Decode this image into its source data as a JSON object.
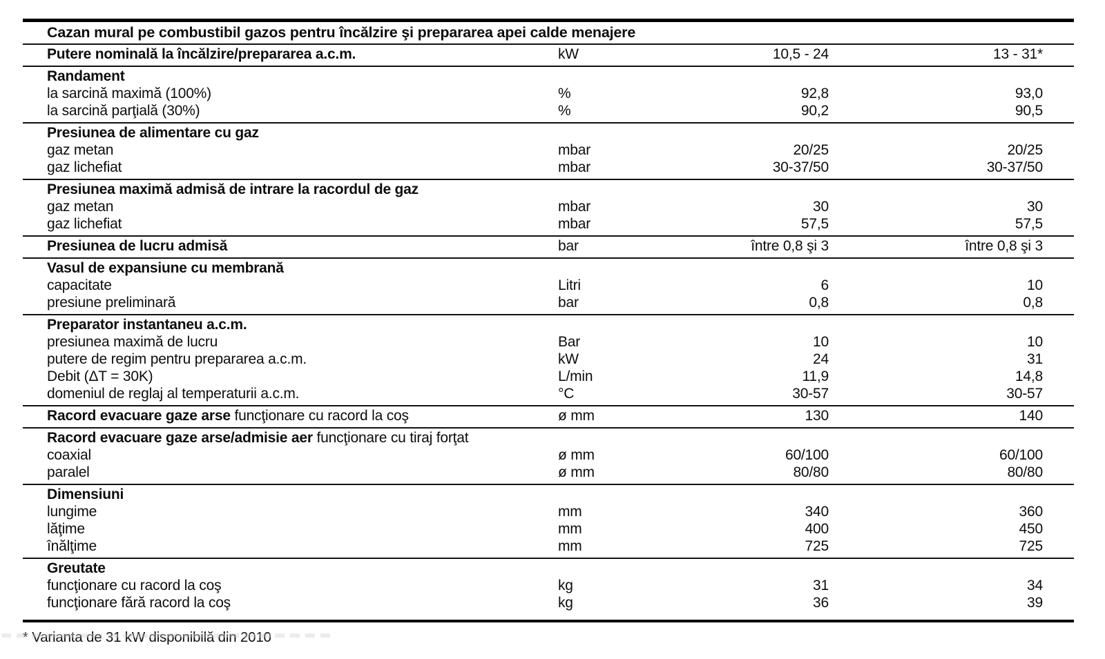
{
  "page": {
    "title_row": "Cazan mural pe combustibil gazos pentru încălzire şi prepararea apei calde menajere",
    "footnote": "* Varianta de 31 kW disponibilă din 2010"
  },
  "table": {
    "power": {
      "label": "Putere nominală la încălzire/prepararea a.c.m.",
      "unit": "kW",
      "v1": "10,5 - 24",
      "v2": "13 - 31*"
    },
    "sections": [
      {
        "header": "Randament",
        "rows": [
          {
            "label": "la sarcină maximă (100%)",
            "unit": "%",
            "v1": "92,8",
            "v2": "93,0"
          },
          {
            "label": "la sarcină parţială (30%)",
            "unit": "%",
            "v1": "90,2",
            "v2": "90,5"
          }
        ]
      },
      {
        "header": "Presiunea de alimentare cu gaz",
        "rows": [
          {
            "label": "gaz metan",
            "unit": "mbar",
            "v1": "20/25",
            "v2": "20/25"
          },
          {
            "label": "gaz lichefiat",
            "unit": "mbar",
            "v1": "30-37/50",
            "v2": "30-37/50"
          }
        ]
      },
      {
        "header": "Presiunea maximă admisă de intrare la racordul de gaz",
        "rows": [
          {
            "label": "gaz metan",
            "unit": "mbar",
            "v1": "30",
            "v2": "30"
          },
          {
            "label": "gaz lichefiat",
            "unit": "mbar",
            "v1": "57,5",
            "v2": "57,5"
          }
        ]
      },
      {
        "header": "Presiunea de lucru admisă",
        "unit": "bar",
        "v1": "între 0,8 şi 3",
        "v2": "între 0,8 şi 3"
      },
      {
        "header": "Vasul de expansiune cu membrană",
        "rows": [
          {
            "label": "capacitate",
            "unit": "Litri",
            "v1": "6",
            "v2": "10"
          },
          {
            "label": "presiune preliminară",
            "unit": "bar",
            "v1": "0,8",
            "v2": "0,8"
          }
        ]
      },
      {
        "header": "Preparator instantaneu a.c.m.",
        "rows": [
          {
            "label": "presiunea maximă de lucru",
            "unit": "Bar",
            "v1": "10",
            "v2": "10"
          },
          {
            "label": "putere de regim pentru prepararea a.c.m.",
            "unit": "kW",
            "v1": "24",
            "v2": "31"
          },
          {
            "label": "Debit (ΔT = 30K)",
            "unit": "L/min",
            "v1": "11,9",
            "v2": "14,8"
          },
          {
            "label": "domeniul de reglaj al temperaturii a.c.m.",
            "unit": "°C",
            "v1": "30-57",
            "v2": "30-57"
          }
        ]
      },
      {
        "header": "Racord evacuare gaze arse",
        "header_rest": " funcţionare cu racord la coş",
        "unit": "ø mm",
        "v1": "130",
        "v2": "140"
      },
      {
        "header": "Racord evacuare gaze arse/admisie aer",
        "header_rest": " funcţionare cu tiraj forţat",
        "rows": [
          {
            "label": "coaxial",
            "unit": "ø mm",
            "v1": "60/100",
            "v2": "60/100"
          },
          {
            "label": "paralel",
            "unit": "ø mm",
            "v1": "80/80",
            "v2": "80/80"
          }
        ]
      },
      {
        "header": "Dimensiuni",
        "rows": [
          {
            "label": "lungime",
            "unit": "mm",
            "v1": "340",
            "v2": "360"
          },
          {
            "label": "lăţime",
            "unit": "mm",
            "v1": "400",
            "v2": "450"
          },
          {
            "label": "înălţime",
            "unit": "mm",
            "v1": "725",
            "v2": "725"
          }
        ]
      },
      {
        "header": "Greutate",
        "rows": [
          {
            "label": "funcţionare cu racord la coş",
            "unit": "kg",
            "v1": "31",
            "v2": "34"
          },
          {
            "label": "funcţionare fără racord la coş",
            "unit": "kg",
            "v1": "36",
            "v2": "39"
          }
        ]
      }
    ]
  }
}
